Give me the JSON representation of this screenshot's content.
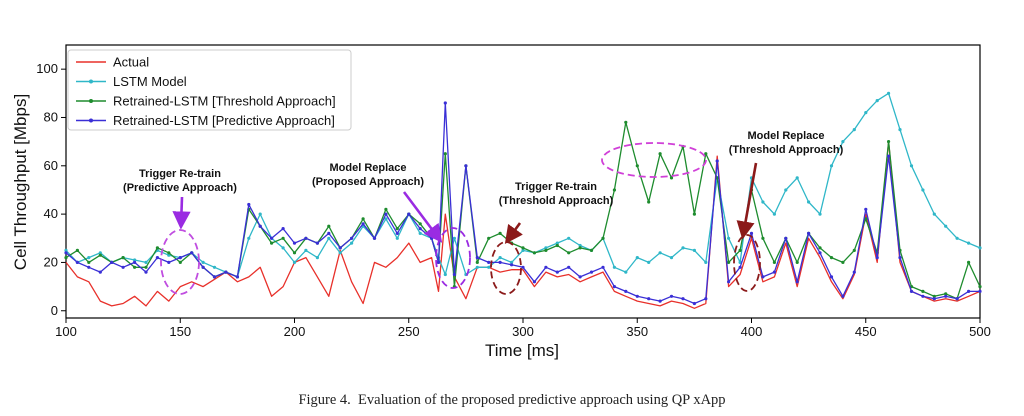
{
  "chart_data": {
    "type": "line",
    "xlabel": "Time [ms]",
    "ylabel": "Cell Throughput [Mbps]",
    "xlim": [
      100,
      500
    ],
    "ylim": [
      -3,
      110
    ],
    "xticks": [
      100,
      150,
      200,
      250,
      300,
      350,
      400,
      450,
      500
    ],
    "yticks": [
      0,
      20,
      40,
      60,
      80,
      100
    ],
    "legend_position": "top-left",
    "series": [
      {
        "name": "Actual",
        "color": "#e8302a",
        "marker": "none",
        "x": [
          100,
          105,
          110,
          115,
          120,
          125,
          130,
          135,
          140,
          145,
          150,
          155,
          160,
          165,
          170,
          175,
          180,
          185,
          190,
          195,
          200,
          205,
          210,
          215,
          220,
          225,
          230,
          235,
          240,
          245,
          250,
          255,
          260,
          263,
          266,
          270,
          275,
          280,
          285,
          290,
          295,
          300,
          305,
          310,
          315,
          320,
          325,
          330,
          335,
          340,
          345,
          350,
          355,
          360,
          365,
          370,
          375,
          380,
          385,
          390,
          395,
          400,
          405,
          410,
          415,
          420,
          425,
          430,
          435,
          440,
          445,
          450,
          455,
          460,
          465,
          470,
          475,
          480,
          485,
          490,
          495,
          500
        ],
        "y": [
          20,
          14,
          12,
          4,
          2,
          3,
          6,
          2,
          8,
          4,
          10,
          12,
          10,
          13,
          16,
          12,
          14,
          18,
          6,
          10,
          20,
          22,
          14,
          6,
          25,
          12,
          3,
          20,
          18,
          22,
          28,
          20,
          22,
          8,
          40,
          14,
          5,
          18,
          18,
          16,
          17,
          17,
          10,
          16,
          14,
          15,
          12,
          14,
          16,
          8,
          6,
          4,
          3,
          2,
          4,
          3,
          1,
          3,
          64,
          10,
          15,
          30,
          12,
          14,
          28,
          10,
          30,
          22,
          12,
          5,
          15,
          40,
          20,
          70,
          20,
          8,
          6,
          4,
          5,
          4,
          6,
          8
        ]
      },
      {
        "name": "LSTM Model",
        "color": "#2fb7c8",
        "marker": "dot",
        "x": [
          100,
          105,
          110,
          115,
          120,
          125,
          130,
          135,
          140,
          145,
          150,
          155,
          160,
          165,
          170,
          175,
          180,
          185,
          190,
          195,
          200,
          205,
          210,
          215,
          220,
          225,
          230,
          235,
          240,
          245,
          250,
          255,
          260,
          263,
          266,
          270,
          275,
          280,
          285,
          290,
          295,
          300,
          305,
          310,
          315,
          320,
          325,
          330,
          335,
          340,
          345,
          350,
          355,
          360,
          365,
          370,
          375,
          380,
          385,
          390,
          395,
          400,
          405,
          410,
          415,
          420,
          425,
          430,
          435,
          440,
          445,
          450,
          455,
          460,
          465,
          470,
          475,
          480,
          485,
          490,
          495,
          500
        ],
        "y": [
          25,
          20,
          22,
          24,
          20,
          22,
          21,
          20,
          25,
          23,
          22,
          24,
          20,
          18,
          16,
          14,
          30,
          40,
          30,
          26,
          20,
          25,
          22,
          30,
          24,
          28,
          35,
          30,
          38,
          30,
          40,
          32,
          30,
          22,
          15,
          30,
          15,
          18,
          18,
          22,
          20,
          25,
          24,
          26,
          28,
          30,
          27,
          25,
          30,
          18,
          16,
          22,
          20,
          24,
          22,
          26,
          25,
          20,
          55,
          30,
          20,
          55,
          45,
          40,
          50,
          55,
          45,
          40,
          60,
          70,
          75,
          82,
          87,
          90,
          75,
          60,
          50,
          40,
          35,
          30,
          28,
          26
        ]
      },
      {
        "name": "Retrained-LSTM [Threshold Approach]",
        "color": "#1e8c2e",
        "marker": "dot",
        "x": [
          100,
          105,
          110,
          115,
          120,
          125,
          130,
          135,
          140,
          145,
          150,
          155,
          160,
          165,
          170,
          175,
          180,
          185,
          190,
          195,
          200,
          205,
          210,
          215,
          220,
          225,
          230,
          235,
          240,
          245,
          250,
          255,
          260,
          263,
          266,
          270,
          275,
          280,
          285,
          290,
          295,
          300,
          305,
          310,
          315,
          320,
          325,
          330,
          335,
          340,
          345,
          350,
          355,
          360,
          365,
          370,
          375,
          380,
          385,
          390,
          395,
          400,
          405,
          410,
          415,
          420,
          425,
          430,
          435,
          440,
          445,
          450,
          455,
          460,
          465,
          470,
          475,
          480,
          485,
          490,
          495,
          500
        ],
        "y": [
          22,
          25,
          20,
          23,
          20,
          22,
          18,
          18,
          26,
          24,
          20,
          24,
          18,
          14,
          16,
          14,
          42,
          35,
          28,
          30,
          24,
          30,
          28,
          35,
          26,
          30,
          38,
          30,
          42,
          34,
          40,
          36,
          30,
          20,
          65,
          10,
          60,
          20,
          30,
          32,
          28,
          26,
          24,
          25,
          27,
          24,
          26,
          25,
          30,
          50,
          78,
          60,
          45,
          65,
          55,
          68,
          40,
          65,
          55,
          20,
          25,
          50,
          30,
          20,
          30,
          20,
          32,
          26,
          22,
          20,
          25,
          38,
          24,
          70,
          25,
          10,
          8,
          6,
          7,
          5,
          20,
          10
        ]
      },
      {
        "name": "Retrained-LSTM [Predictive Approach]",
        "color": "#3a2fd6",
        "marker": "dot",
        "x": [
          100,
          105,
          110,
          115,
          120,
          125,
          130,
          135,
          140,
          145,
          150,
          155,
          160,
          165,
          170,
          175,
          180,
          185,
          190,
          195,
          200,
          205,
          210,
          215,
          220,
          225,
          230,
          235,
          240,
          245,
          250,
          255,
          260,
          263,
          266,
          270,
          275,
          280,
          285,
          290,
          295,
          300,
          305,
          310,
          315,
          320,
          325,
          330,
          335,
          340,
          345,
          350,
          355,
          360,
          365,
          370,
          375,
          380,
          385,
          390,
          395,
          400,
          405,
          410,
          415,
          420,
          425,
          430,
          435,
          440,
          445,
          450,
          455,
          460,
          465,
          470,
          475,
          480,
          485,
          490,
          495,
          500
        ],
        "y": [
          24,
          20,
          18,
          16,
          20,
          18,
          20,
          16,
          22,
          20,
          22,
          24,
          18,
          14,
          16,
          14,
          44,
          35,
          30,
          34,
          28,
          30,
          28,
          32,
          26,
          30,
          36,
          30,
          40,
          32,
          40,
          34,
          30,
          20,
          86,
          15,
          60,
          22,
          20,
          20,
          19,
          18,
          12,
          18,
          16,
          18,
          14,
          16,
          18,
          10,
          8,
          6,
          5,
          4,
          6,
          5,
          3,
          5,
          62,
          12,
          18,
          32,
          14,
          16,
          30,
          12,
          32,
          24,
          14,
          6,
          16,
          42,
          22,
          64,
          22,
          8,
          6,
          5,
          6,
          5,
          8,
          8
        ]
      }
    ],
    "annotations": [
      {
        "text_lines": [
          "Trigger Re-train",
          "(Predictive Approach)"
        ],
        "color": "#9a2be2",
        "arrow": "violet"
      },
      {
        "text_lines": [
          "Model Replace",
          "(Proposed  Approach)"
        ],
        "color": "#9a2be2",
        "arrow": "violet"
      },
      {
        "text_lines": [
          "Trigger Re-train",
          "(Threshold Approach)"
        ],
        "color": "#8b1a1a",
        "arrow": "dark-red"
      },
      {
        "text_lines": [
          "Model Replace",
          "(Threshold  Approach)"
        ],
        "color": "#8b1a1a",
        "arrow": "dark-red"
      }
    ]
  },
  "caption": {
    "label": "Figure 4.",
    "text": "Evaluation of the proposed predictive approach using QP xApp"
  }
}
